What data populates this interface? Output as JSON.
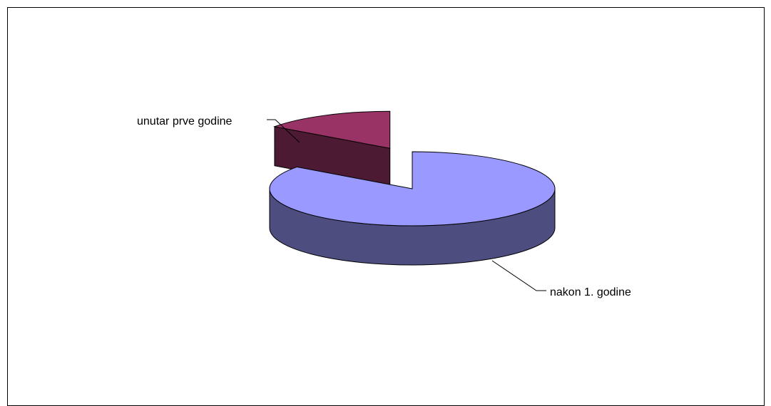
{
  "chart_data": {
    "type": "pie",
    "style": "3d-exploded",
    "categories": [
      "unutar prve godine",
      "nakon 1. godine"
    ],
    "values": [
      15,
      85
    ],
    "colors": {
      "unutar prve godine": {
        "top": "#993366",
        "side": "#4d1a33"
      },
      "nakon 1. godine": {
        "top": "#9999ff",
        "side": "#4d4d80"
      }
    },
    "legend": "none",
    "labels_shown": true
  }
}
